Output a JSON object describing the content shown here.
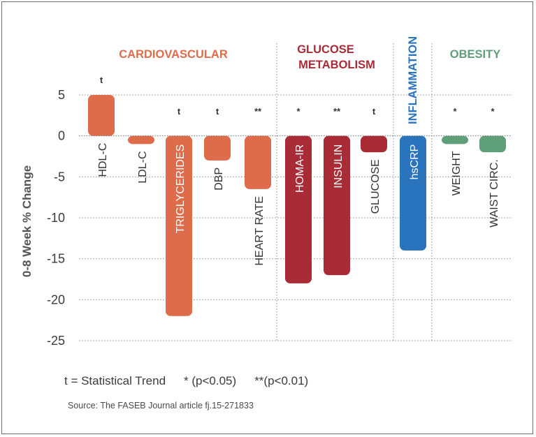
{
  "chart_data": {
    "type": "bar",
    "ylabel": "0-8 Week % Change",
    "ylim": [
      -25,
      5
    ],
    "yticks": [
      5,
      0,
      -5,
      -10,
      -15,
      -20,
      -25
    ],
    "grid": true,
    "groups": [
      {
        "label": "CARDIOVASCULAR",
        "color": "#de6c4a"
      },
      {
        "label": "GLUCOSE\nMETABOLISM",
        "color": "#a92b36"
      },
      {
        "label": "INFLAMMATION",
        "color": "#2a73bd"
      },
      {
        "label": "OBESITY",
        "color": "#5e9e78"
      }
    ],
    "bars": [
      {
        "label": "HDL-C",
        "value": 5,
        "sig": "t",
        "group": 0,
        "label_inside": false
      },
      {
        "label": "LDL-C",
        "value": -1,
        "sig": "",
        "group": 0,
        "label_inside": false
      },
      {
        "label": "TRIGLYCERIDES",
        "value": -22,
        "sig": "t",
        "group": 0,
        "label_inside": true
      },
      {
        "label": "DBP",
        "value": -3,
        "sig": "t",
        "group": 0,
        "label_inside": false
      },
      {
        "label": "HEART RATE",
        "value": -6.5,
        "sig": "**",
        "group": 0,
        "label_inside": false
      },
      {
        "label": "HOMA-IR",
        "value": -18,
        "sig": "*",
        "group": 1,
        "label_inside": true
      },
      {
        "label": "INSULIN",
        "value": -17,
        "sig": "**",
        "group": 1,
        "label_inside": true
      },
      {
        "label": "GLUCOSE",
        "value": -2,
        "sig": "t",
        "group": 1,
        "label_inside": false
      },
      {
        "label": "hsCRP",
        "value": -14,
        "sig": "",
        "group": 2,
        "label_inside": true
      },
      {
        "label": "WEIGHT",
        "value": -1,
        "sig": "*",
        "group": 3,
        "label_inside": false
      },
      {
        "label": "WAIST CIRC.",
        "value": -2,
        "sig": "*",
        "group": 3,
        "label_inside": false
      }
    ]
  },
  "legend": {
    "trend": "t = Statistical Trend",
    "p05": "* (p<0.05)",
    "p01": "**(p<0.01)"
  },
  "source": "Source: The FASEB Journal article fj.15-271833"
}
